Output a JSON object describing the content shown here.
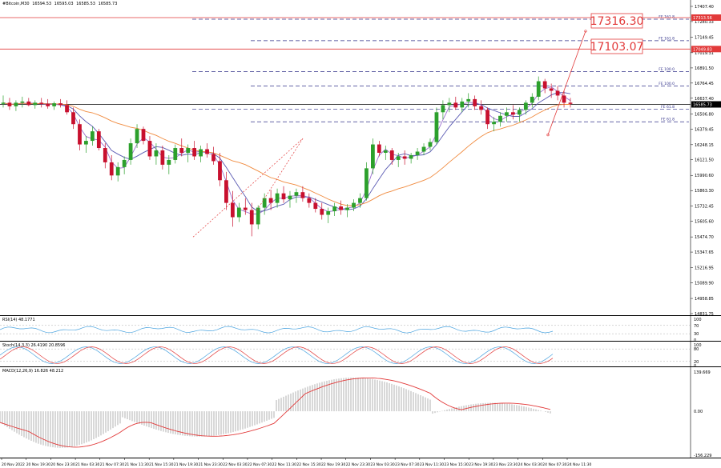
{
  "header": {
    "symbol": "#Bitcoin,M30",
    "open": "16594.53",
    "high": "16595.03",
    "low": "16585.53",
    "close": "16585.73"
  },
  "indicators": {
    "rsi_label": "RSI(14) 48.1771",
    "stoch_label": "Stoch(14,3,3) 26.4190 20.8596",
    "macd_label": "MACD(12,26,9) 16.826 48.212"
  },
  "price_axis_labels": [
    "17407.40",
    "17280.33",
    "17149.45",
    "17019.31",
    "16891.50",
    "16764.45",
    "16637.40",
    "16506.80",
    "16379.45",
    "16248.15",
    "16121.50",
    "15990.60",
    "15863.30",
    "15732.45",
    "15605.60",
    "15474.70",
    "15347.65",
    "15216.95",
    "15089.90",
    "14958.85",
    "14831.75"
  ],
  "rsi_axis_labels": [
    "100",
    "70",
    "30",
    "0"
  ],
  "stoch_axis_labels": [
    "100",
    "80",
    "20",
    "0"
  ],
  "macd_axis_labels": [
    "139.669",
    "0.00",
    "-156.229"
  ],
  "time_axis_labels": [
    "20 Nov 2022",
    "20 Nov 19:30",
    "20 Nov 23:30",
    "21 Nov 03:30",
    "21 Nov 07:30",
    "21 Nov 11:30",
    "21 Nov 15:30",
    "21 Nov 19:30",
    "21 Nov 23:30",
    "22 Nov 03:30",
    "22 Nov 07:30",
    "22 Nov 11:30",
    "22 Nov 15:30",
    "22 Nov 19:30",
    "22 Nov 23:30",
    "23 Nov 03:30",
    "23 Nov 07:30",
    "23 Nov 11:30",
    "23 Nov 15:30",
    "23 Nov 19:30",
    "23 Nov 23:30",
    "24 Nov 03:30",
    "24 Nov 07:30",
    "24 Nov 11:30"
  ],
  "fibo_labels": [
    "FE 161.8",
    "FE 161.8",
    "FE 100.0",
    "FE 100.0",
    "FE 61.8",
    "FE 61.8"
  ],
  "current_price_tag": "16585.73",
  "red_price_tags": [
    "17313.56",
    "17049.83"
  ],
  "targets": {
    "target_upper": "17316.30",
    "target_lower": "17103.07"
  },
  "colors": {
    "bull": "#2ca02c",
    "bear": "#c8102e",
    "ma_fast": "#9b6fcf",
    "ma_mid": "#5b5bb3",
    "ma_slow": "#f08a3e",
    "fibo_line": "#33338a",
    "target_red": "#e23a3a",
    "rsi_line": "#4aa3df",
    "stoch_main": "#4aa3df",
    "stoch_signal": "#e23a3a",
    "macd_hist": "#bdbdbd",
    "macd_signal": "#e23a3a"
  },
  "chart_data": {
    "type": "candlestick",
    "title": "#Bitcoin,M30",
    "ylim": [
      14831.75,
      17407.4
    ],
    "candles": [
      [
        16590,
        16660,
        16560,
        16600
      ],
      [
        16600,
        16640,
        16540,
        16570
      ],
      [
        16570,
        16620,
        16530,
        16600
      ],
      [
        16600,
        16650,
        16560,
        16610
      ],
      [
        16610,
        16640,
        16570,
        16580
      ],
      [
        16580,
        16620,
        16550,
        16600
      ],
      [
        16600,
        16640,
        16560,
        16590
      ],
      [
        16590,
        16630,
        16550,
        16570
      ],
      [
        16570,
        16610,
        16540,
        16595
      ],
      [
        16595,
        16630,
        16560,
        16580
      ],
      [
        16580,
        16620,
        16500,
        16520
      ],
      [
        16520,
        16560,
        16380,
        16420
      ],
      [
        16420,
        16460,
        16200,
        16250
      ],
      [
        16250,
        16320,
        16180,
        16280
      ],
      [
        16280,
        16400,
        16240,
        16360
      ],
      [
        16360,
        16380,
        16200,
        16220
      ],
      [
        16220,
        16260,
        16050,
        16100
      ],
      [
        16100,
        16160,
        15950,
        15990
      ],
      [
        15990,
        16100,
        15940,
        16060
      ],
      [
        16060,
        16150,
        16000,
        16120
      ],
      [
        16120,
        16300,
        16080,
        16260
      ],
      [
        16260,
        16420,
        16220,
        16380
      ],
      [
        16380,
        16400,
        16250,
        16280
      ],
      [
        16280,
        16320,
        16120,
        16150
      ],
      [
        16150,
        16260,
        16080,
        16200
      ],
      [
        16200,
        16240,
        16040,
        16080
      ],
      [
        16080,
        16160,
        16000,
        16120
      ],
      [
        16120,
        16250,
        16090,
        16220
      ],
      [
        16220,
        16300,
        16150,
        16180
      ],
      [
        16180,
        16250,
        16100,
        16220
      ],
      [
        16220,
        16280,
        16120,
        16150
      ],
      [
        16150,
        16240,
        16100,
        16210
      ],
      [
        16210,
        16260,
        16140,
        16170
      ],
      [
        16170,
        16230,
        16080,
        16110
      ],
      [
        16110,
        16180,
        15900,
        15950
      ],
      [
        15950,
        16020,
        15700,
        15760
      ],
      [
        15760,
        15860,
        15560,
        15640
      ],
      [
        15640,
        15760,
        15600,
        15720
      ],
      [
        15720,
        15800,
        15660,
        15700
      ],
      [
        15700,
        15760,
        15480,
        15580
      ],
      [
        15580,
        15740,
        15540,
        15720
      ],
      [
        15720,
        15840,
        15660,
        15800
      ],
      [
        15800,
        15870,
        15700,
        15760
      ],
      [
        15760,
        15880,
        15720,
        15840
      ],
      [
        15840,
        15900,
        15760,
        15790
      ],
      [
        15790,
        15860,
        15720,
        15820
      ],
      [
        15820,
        15880,
        15760,
        15850
      ],
      [
        15850,
        15900,
        15770,
        15800
      ],
      [
        15800,
        15840,
        15720,
        15760
      ],
      [
        15760,
        15800,
        15680,
        15710
      ],
      [
        15710,
        15760,
        15620,
        15660
      ],
      [
        15660,
        15720,
        15590,
        15690
      ],
      [
        15690,
        15760,
        15650,
        15730
      ],
      [
        15730,
        15780,
        15660,
        15700
      ],
      [
        15700,
        15750,
        15640,
        15720
      ],
      [
        15720,
        15790,
        15690,
        15760
      ],
      [
        15760,
        15840,
        15720,
        15800
      ],
      [
        15800,
        16100,
        15780,
        16050
      ],
      [
        16050,
        16300,
        16000,
        16250
      ],
      [
        16250,
        16280,
        16150,
        16180
      ],
      [
        16180,
        16240,
        16120,
        16200
      ],
      [
        16200,
        16220,
        16080,
        16120
      ],
      [
        16120,
        16180,
        16060,
        16150
      ],
      [
        16150,
        16200,
        16080,
        16130
      ],
      [
        16130,
        16180,
        16090,
        16160
      ],
      [
        16160,
        16220,
        16120,
        16190
      ],
      [
        16190,
        16260,
        16160,
        16230
      ],
      [
        16230,
        16300,
        16200,
        16270
      ],
      [
        16270,
        16560,
        16250,
        16520
      ],
      [
        16520,
        16620,
        16460,
        16580
      ],
      [
        16580,
        16640,
        16520,
        16600
      ],
      [
        16600,
        16650,
        16540,
        16560
      ],
      [
        16560,
        16640,
        16520,
        16610
      ],
      [
        16610,
        16680,
        16560,
        16630
      ],
      [
        16630,
        16660,
        16540,
        16570
      ],
      [
        16570,
        16620,
        16500,
        16540
      ],
      [
        16540,
        16560,
        16380,
        16420
      ],
      [
        16420,
        16480,
        16360,
        16440
      ],
      [
        16440,
        16520,
        16400,
        16490
      ],
      [
        16490,
        16560,
        16440,
        16520
      ],
      [
        16520,
        16580,
        16460,
        16500
      ],
      [
        16500,
        16560,
        16440,
        16540
      ],
      [
        16540,
        16620,
        16500,
        16600
      ],
      [
        16600,
        16680,
        16560,
        16650
      ],
      [
        16650,
        16820,
        16620,
        16780
      ],
      [
        16780,
        16800,
        16680,
        16720
      ],
      [
        16720,
        16760,
        16640,
        16700
      ],
      [
        16700,
        16740,
        16620,
        16660
      ],
      [
        16660,
        16700,
        16560,
        16600
      ],
      [
        16600,
        16640,
        16560,
        16590
      ]
    ],
    "annotations": [
      "17316.30",
      "17103.07",
      "FE 161.8",
      "FE 100.0",
      "FE 61.8"
    ]
  }
}
